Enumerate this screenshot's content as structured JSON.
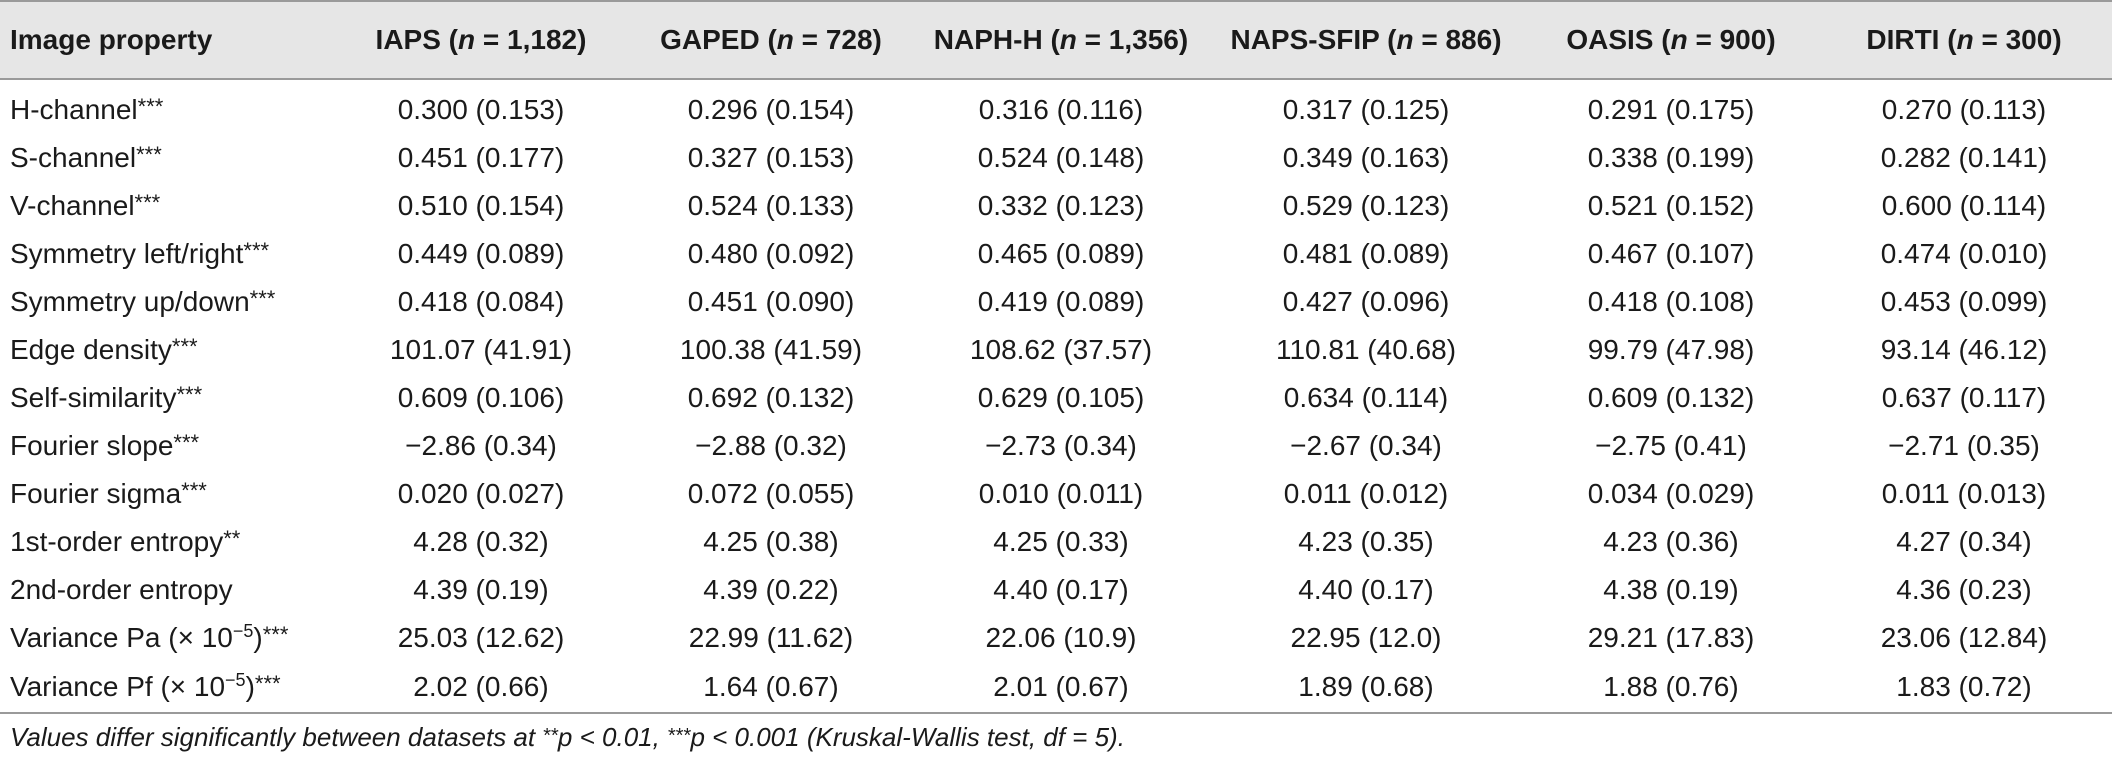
{
  "table": {
    "header_first": "Image property",
    "columns": [
      {
        "name": "IAPS",
        "n_label": "n",
        "n_value": " = 1,182"
      },
      {
        "name": "GAPED",
        "n_label": "n",
        "n_value": " = 728"
      },
      {
        "name": "NAPH-H",
        "n_label": "n",
        "n_value": " = 1,356"
      },
      {
        "name": "NAPS-SFIP",
        "n_label": "n",
        "n_value": " = 886"
      },
      {
        "name": "OASIS",
        "n_label": "n",
        "n_value": " = 900"
      },
      {
        "name": "DIRTI",
        "n_label": "n",
        "n_value": " = 300"
      }
    ],
    "rows": [
      {
        "label": "H-channel",
        "stars": "***",
        "values": [
          "0.300 (0.153)",
          "0.296 (0.154)",
          "0.316 (0.116)",
          "0.317 (0.125)",
          "0.291 (0.175)",
          "0.270 (0.113)"
        ]
      },
      {
        "label": "S-channel",
        "stars": "***",
        "values": [
          "0.451 (0.177)",
          "0.327 (0.153)",
          "0.524 (0.148)",
          "0.349 (0.163)",
          "0.338 (0.199)",
          "0.282 (0.141)"
        ]
      },
      {
        "label": "V-channel",
        "stars": "***",
        "values": [
          "0.510 (0.154)",
          "0.524 (0.133)",
          "0.332 (0.123)",
          "0.529 (0.123)",
          "0.521 (0.152)",
          "0.600 (0.114)"
        ]
      },
      {
        "label": "Symmetry left/right",
        "stars": "***",
        "values": [
          "0.449 (0.089)",
          "0.480 (0.092)",
          "0.465 (0.089)",
          "0.481 (0.089)",
          "0.467 (0.107)",
          "0.474 (0.010)"
        ]
      },
      {
        "label": "Symmetry up/down",
        "stars": "***",
        "values": [
          "0.418 (0.084)",
          "0.451 (0.090)",
          "0.419 (0.089)",
          "0.427 (0.096)",
          "0.418 (0.108)",
          "0.453 (0.099)"
        ]
      },
      {
        "label": "Edge density",
        "stars": "***",
        "values": [
          "101.07 (41.91)",
          "100.38 (41.59)",
          "108.62 (37.57)",
          "110.81 (40.68)",
          "99.79 (47.98)",
          "93.14 (46.12)"
        ]
      },
      {
        "label": "Self-similarity",
        "stars": "***",
        "values": [
          "0.609 (0.106)",
          "0.692 (0.132)",
          "0.629 (0.105)",
          "0.634 (0.114)",
          "0.609 (0.132)",
          "0.637 (0.117)"
        ]
      },
      {
        "label": "Fourier slope",
        "stars": "***",
        "values": [
          "−2.86 (0.34)",
          "−2.88 (0.32)",
          "−2.73 (0.34)",
          "−2.67 (0.34)",
          "−2.75 (0.41)",
          "−2.71 (0.35)"
        ]
      },
      {
        "label": "Fourier sigma",
        "stars": "***",
        "values": [
          "0.020 (0.027)",
          "0.072 (0.055)",
          "0.010 (0.011)",
          "0.011 (0.012)",
          "0.034 (0.029)",
          "0.011 (0.013)"
        ]
      },
      {
        "label": "1st-order entropy",
        "stars": "**",
        "values": [
          "4.28 (0.32)",
          "4.25 (0.38)",
          "4.25 (0.33)",
          "4.23 (0.35)",
          "4.23 (0.36)",
          "4.27 (0.34)"
        ]
      },
      {
        "label": "2nd-order entropy",
        "stars": "",
        "values": [
          "4.39 (0.19)",
          "4.39 (0.22)",
          "4.40 (0.17)",
          "4.40 (0.17)",
          "4.38 (0.19)",
          "4.36 (0.23)"
        ]
      },
      {
        "label": "Variance Pa (× 10",
        "exp": "−5",
        "suffix": ")",
        "stars": "***",
        "values": [
          "25.03 (12.62)",
          "22.99 (11.62)",
          "22.06 (10.9)",
          "22.95 (12.0)",
          "29.21 (17.83)",
          "23.06 (12.84)"
        ]
      },
      {
        "label": "Variance Pf (× 10",
        "exp": "−5",
        "suffix": ")",
        "stars": "***",
        "values": [
          "2.02 (0.66)",
          "1.64 (0.67)",
          "2.01 (0.67)",
          "1.89 (0.68)",
          "1.88 (0.76)",
          "1.83 (0.72)"
        ]
      }
    ]
  },
  "footnote": {
    "part1": "Values differ significantly between datasets at ",
    "stars1": "**",
    "part2": "p < 0.01, ",
    "stars2": "***",
    "part3": "p < 0.001 (Kruskal-Wallis test, df = 5)."
  }
}
